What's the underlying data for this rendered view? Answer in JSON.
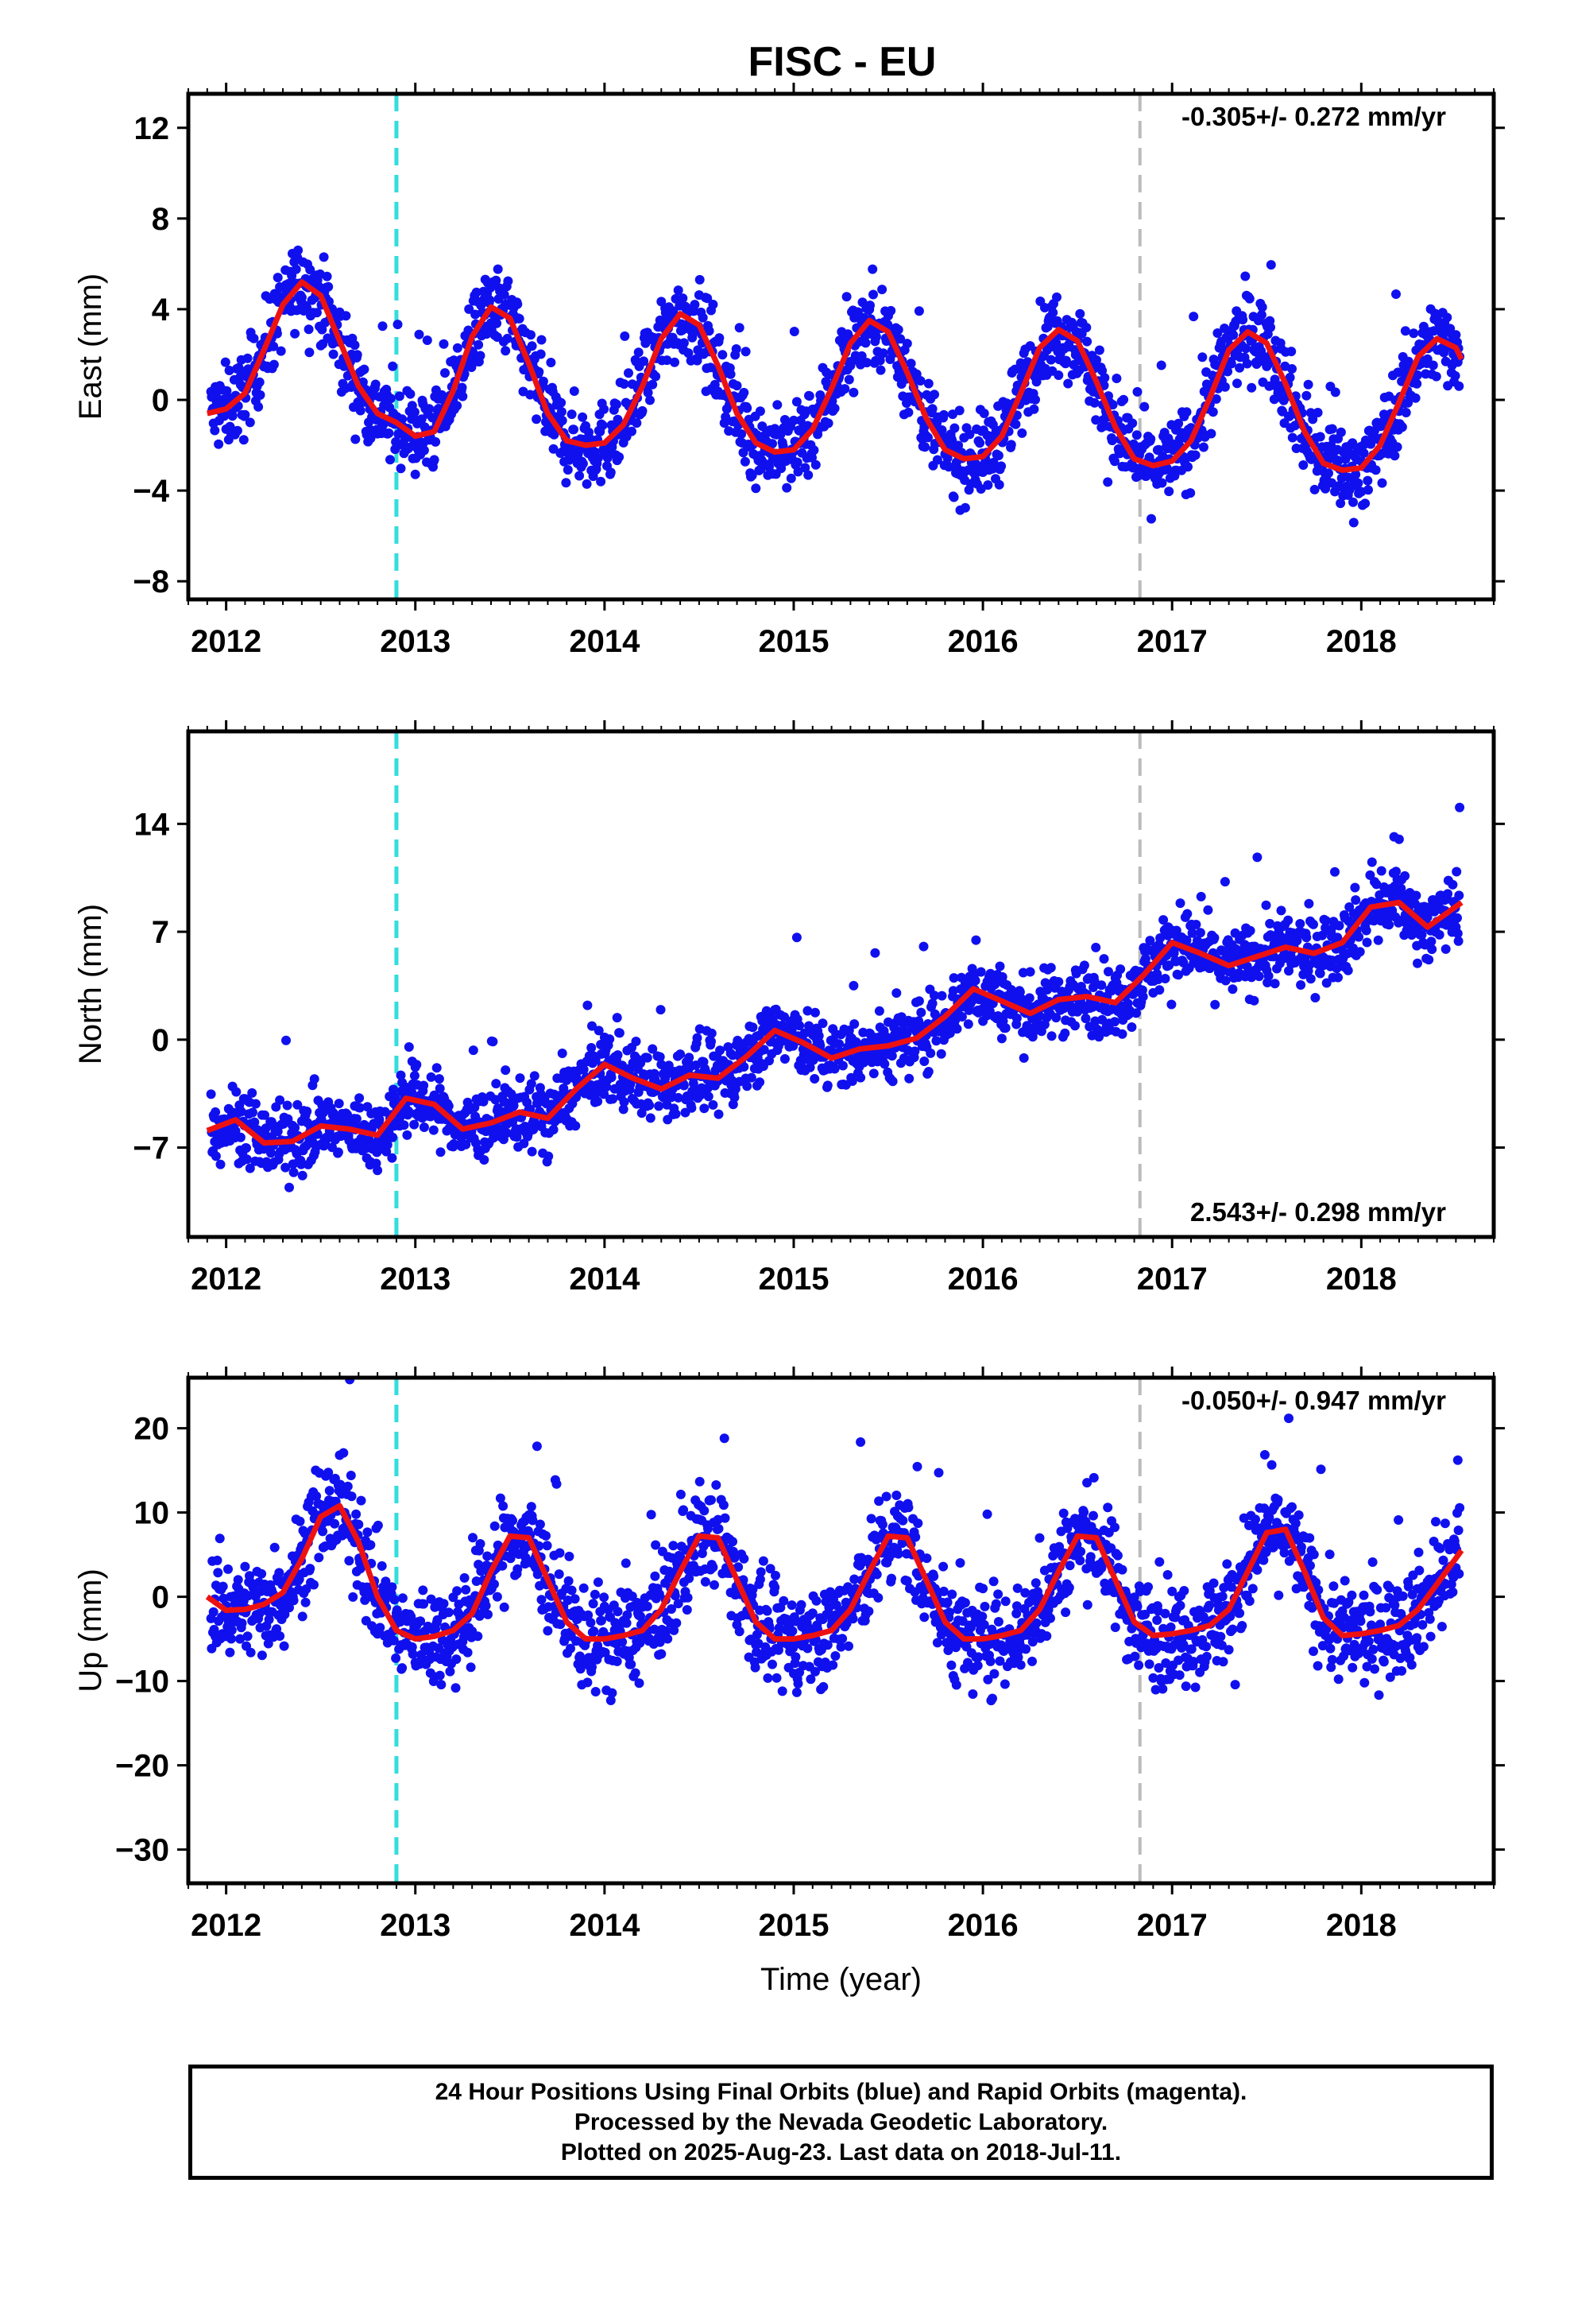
{
  "title": "FISC - EU",
  "colors": {
    "data": "#1010ee",
    "fit": "#ee1111",
    "antenna_change": "#33dddd",
    "equipment_change": "#bbbbbb"
  },
  "footer": {
    "line1": "24 Hour Positions Using Final Orbits (blue) and Rapid Orbits (magenta).",
    "line2": "Processed by the Nevada Geodetic Laboratory.",
    "line3": "Plotted on 2025-Aug-23. Last data on 2018-Jul-11."
  },
  "chart_data": [
    {
      "type": "scatter",
      "component": "east",
      "ylabel": "East (mm)",
      "xlabel": "",
      "xlim": [
        2011.8,
        2018.7
      ],
      "ylim": [
        -8.8,
        13.5
      ],
      "xticks": [
        2012,
        2013,
        2014,
        2015,
        2016,
        2017,
        2018
      ],
      "yticks": [
        -8,
        -4,
        0,
        4,
        8,
        12
      ],
      "ytick_labels": [
        "−8",
        "−4",
        "0",
        "4",
        "8",
        "12"
      ],
      "rate_label": "-0.305+/- 0.272 mm/yr",
      "rate_position": "top-right",
      "vlines": [
        {
          "x": 2012.9,
          "color": "antenna_change"
        },
        {
          "x": 2016.83,
          "color": "equipment_change"
        }
      ],
      "fit_x": [
        2011.9,
        2012.0,
        2012.1,
        2012.2,
        2012.3,
        2012.4,
        2012.5,
        2012.6,
        2012.7,
        2012.8,
        2012.9,
        2013.0,
        2013.1,
        2013.2,
        2013.3,
        2013.4,
        2013.5,
        2013.6,
        2013.7,
        2013.8,
        2013.9,
        2014.0,
        2014.1,
        2014.2,
        2014.3,
        2014.4,
        2014.5,
        2014.6,
        2014.7,
        2014.8,
        2014.9,
        2015.0,
        2015.1,
        2015.2,
        2015.3,
        2015.4,
        2015.5,
        2015.6,
        2015.7,
        2015.8,
        2015.9,
        2016.0,
        2016.1,
        2016.2,
        2016.3,
        2016.4,
        2016.5,
        2016.6,
        2016.7,
        2016.8,
        2016.9,
        2017.0,
        2017.1,
        2017.2,
        2017.3,
        2017.4,
        2017.5,
        2017.6,
        2017.7,
        2017.8,
        2017.9,
        2018.0,
        2018.1,
        2018.2,
        2018.3,
        2018.4,
        2018.5,
        2018.53
      ],
      "fit_y": [
        -0.6,
        -0.4,
        0.3,
        2.2,
        4.2,
        5.2,
        4.6,
        2.6,
        0.6,
        -0.6,
        -1.0,
        -1.6,
        -1.4,
        0.4,
        2.8,
        4.1,
        3.6,
        1.6,
        -0.6,
        -1.8,
        -2.0,
        -1.9,
        -1.1,
        0.6,
        2.7,
        3.8,
        3.3,
        1.5,
        -0.6,
        -1.9,
        -2.3,
        -2.2,
        -1.3,
        0.5,
        2.5,
        3.5,
        3.0,
        1.2,
        -0.8,
        -2.2,
        -2.6,
        -2.5,
        -1.6,
        0.3,
        2.3,
        3.1,
        2.6,
        0.8,
        -1.2,
        -2.6,
        -2.9,
        -2.7,
        -1.8,
        0.1,
        2.2,
        3.0,
        2.5,
        0.7,
        -1.4,
        -2.8,
        -3.1,
        -3.0,
        -2.0,
        -0.1,
        1.9,
        2.7,
        2.3,
        1.8
      ],
      "amp": 4.2,
      "phase": 2012.43,
      "trend": -0.305,
      "spread": 1.3
    },
    {
      "type": "scatter",
      "component": "north",
      "ylabel": "North (mm)",
      "xlabel": "",
      "xlim": [
        2011.8,
        2018.7
      ],
      "ylim": [
        -12.8,
        20.0
      ],
      "xticks": [
        2012,
        2013,
        2014,
        2015,
        2016,
        2017,
        2018
      ],
      "yticks": [
        -7,
        0,
        7,
        14
      ],
      "ytick_labels": [
        "−7",
        "0",
        "7",
        "14"
      ],
      "rate_label": "2.543+/- 0.298 mm/yr",
      "rate_position": "bottom-right",
      "vlines": [
        {
          "x": 2012.9,
          "color": "antenna_change"
        },
        {
          "x": 2016.83,
          "color": "equipment_change"
        }
      ],
      "fit_x": [
        2011.9,
        2012.05,
        2012.2,
        2012.35,
        2012.5,
        2012.65,
        2012.8,
        2012.95,
        2013.1,
        2013.25,
        2013.4,
        2013.55,
        2013.7,
        2013.85,
        2014.0,
        2014.15,
        2014.3,
        2014.45,
        2014.6,
        2014.75,
        2014.9,
        2015.05,
        2015.2,
        2015.35,
        2015.5,
        2015.65,
        2015.8,
        2015.95,
        2016.1,
        2016.25,
        2016.4,
        2016.55,
        2016.7,
        2016.85,
        2017.0,
        2017.15,
        2017.3,
        2017.45,
        2017.6,
        2017.75,
        2017.9,
        2018.05,
        2018.2,
        2018.35,
        2018.53
      ],
      "fit_y": [
        -5.9,
        -5.2,
        -6.7,
        -6.6,
        -5.6,
        -5.8,
        -6.2,
        -3.8,
        -4.2,
        -5.8,
        -5.4,
        -4.7,
        -5.1,
        -3.2,
        -1.6,
        -2.5,
        -3.2,
        -2.3,
        -2.5,
        -1.1,
        0.6,
        -0.2,
        -1.2,
        -0.6,
        -0.4,
        0.1,
        1.5,
        3.3,
        2.5,
        1.7,
        2.6,
        2.8,
        2.4,
        4.2,
        6.3,
        5.6,
        4.8,
        5.4,
        6.0,
        5.6,
        6.3,
        8.6,
        8.9,
        7.3,
        8.9
      ],
      "trend": 2.543,
      "spread": 1.6
    },
    {
      "type": "scatter",
      "component": "up",
      "ylabel": "Up (mm)",
      "xlabel": "Time (year)",
      "xlim": [
        2011.8,
        2018.7
      ],
      "ylim": [
        -34.0,
        26.0
      ],
      "xticks": [
        2012,
        2013,
        2014,
        2015,
        2016,
        2017,
        2018
      ],
      "yticks": [
        -30,
        -20,
        -10,
        0,
        10,
        20
      ],
      "ytick_labels": [
        "−30",
        "−20",
        "−10",
        "0",
        "10",
        "20"
      ],
      "rate_label": "-0.050+/- 0.947 mm/yr",
      "rate_position": "top-right",
      "vlines": [
        {
          "x": 2012.9,
          "color": "antenna_change"
        },
        {
          "x": 2016.83,
          "color": "equipment_change"
        }
      ],
      "fit_x": [
        2011.9,
        2012.0,
        2012.1,
        2012.2,
        2012.3,
        2012.4,
        2012.5,
        2012.6,
        2012.7,
        2012.8,
        2012.9,
        2013.0,
        2013.1,
        2013.2,
        2013.3,
        2013.4,
        2013.5,
        2013.6,
        2013.7,
        2013.8,
        2013.9,
        2014.0,
        2014.1,
        2014.2,
        2014.3,
        2014.4,
        2014.5,
        2014.6,
        2014.7,
        2014.8,
        2014.9,
        2015.0,
        2015.1,
        2015.2,
        2015.3,
        2015.4,
        2015.5,
        2015.6,
        2015.7,
        2015.8,
        2015.9,
        2016.0,
        2016.1,
        2016.2,
        2016.3,
        2016.4,
        2016.5,
        2016.6,
        2016.7,
        2016.8,
        2016.9,
        2017.0,
        2017.1,
        2017.2,
        2017.3,
        2017.4,
        2017.5,
        2017.6,
        2017.7,
        2017.8,
        2017.9,
        2018.0,
        2018.1,
        2018.2,
        2018.3,
        2018.4,
        2018.53
      ],
      "fit_y": [
        0.0,
        -1.6,
        -1.5,
        -0.9,
        0.5,
        4.5,
        9.5,
        10.8,
        6.5,
        0.0,
        -4.0,
        -5.0,
        -4.7,
        -4.0,
        -2.0,
        3.0,
        7.2,
        7.0,
        2.0,
        -3.0,
        -5.0,
        -5.0,
        -4.6,
        -4.0,
        -1.5,
        3.0,
        7.2,
        7.0,
        2.0,
        -3.0,
        -5.0,
        -5.0,
        -4.6,
        -4.0,
        -1.5,
        3.0,
        7.2,
        7.0,
        2.0,
        -3.0,
        -5.0,
        -5.0,
        -4.6,
        -4.0,
        -1.5,
        3.0,
        7.2,
        7.0,
        2.0,
        -3.0,
        -4.6,
        -4.4,
        -4.0,
        -3.4,
        -1.5,
        3.0,
        7.6,
        8.0,
        3.0,
        -2.5,
        -4.6,
        -4.4,
        -4.0,
        -3.4,
        -1.5,
        1.5,
        5.5
      ],
      "spread": 4.2
    }
  ]
}
